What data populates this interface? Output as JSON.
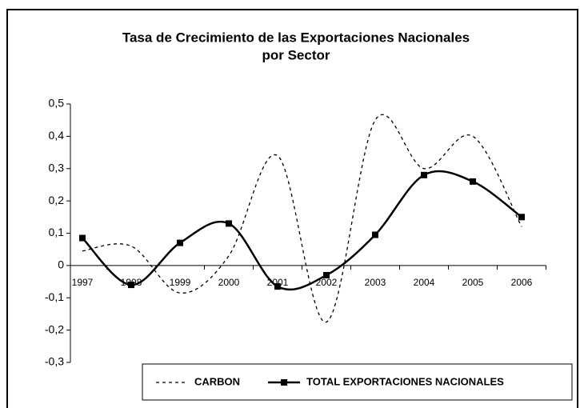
{
  "chart_data": {
    "type": "line",
    "title": [
      "Tasa de Crecimiento de las Exportaciones Nacionales",
      "por Sector"
    ],
    "categories": [
      "1997",
      "1998",
      "1999",
      "2000",
      "2001",
      "2002",
      "2003",
      "2004",
      "2005",
      "2006"
    ],
    "series": [
      {
        "name": "CARBON",
        "color": "#000000",
        "dashed": true,
        "marker": false,
        "values": [
          0.045,
          0.06,
          -0.085,
          0.03,
          0.34,
          -0.175,
          0.45,
          0.3,
          0.4,
          0.12
        ]
      },
      {
        "name": "TOTAL EXPORTACIONES NACIONALES",
        "color": "#000000",
        "dashed": false,
        "marker": true,
        "values": [
          0.085,
          -0.06,
          0.07,
          0.13,
          -0.065,
          -0.03,
          0.095,
          0.28,
          0.26,
          0.15
        ]
      }
    ],
    "ylim": [
      -0.3,
      0.5
    ],
    "yticks": [
      {
        "value": -0.3,
        "label": "-0,3"
      },
      {
        "value": -0.2,
        "label": "-0,2"
      },
      {
        "value": -0.1,
        "label": "-0,1"
      },
      0,
      {
        "value": 0.1,
        "label": "0,1"
      },
      {
        "value": 0.2,
        "label": "0,2"
      },
      {
        "value": 0.3,
        "label": "0,3"
      },
      {
        "value": 0.4,
        "label": "0,4"
      },
      {
        "value": 0.5,
        "label": "0,5"
      }
    ],
    "grid": false,
    "smooth": true,
    "legend": "bottom"
  }
}
